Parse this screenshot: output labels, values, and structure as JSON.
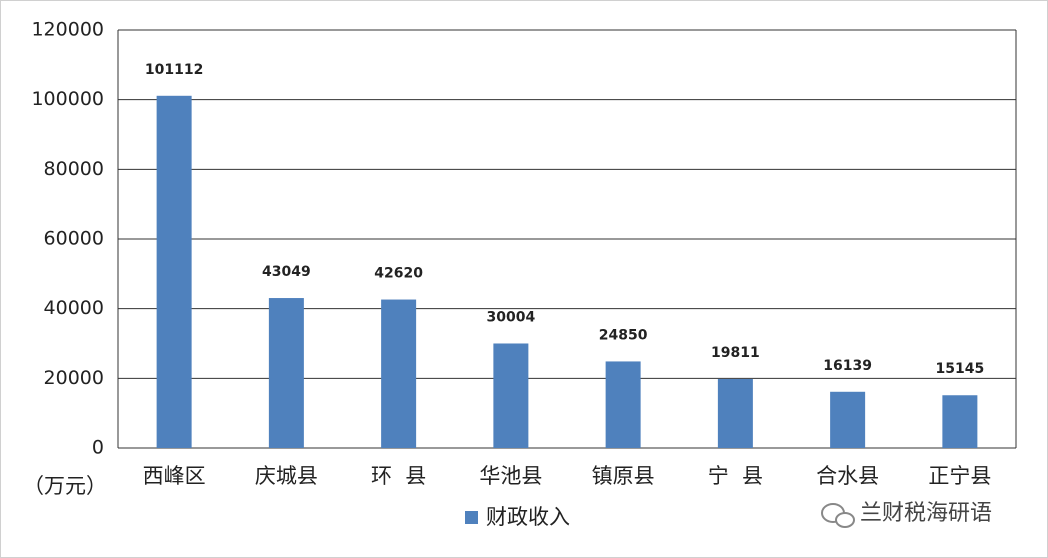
{
  "chart_data": {
    "type": "bar",
    "y_label": "（万元）",
    "categories": [
      "西峰区",
      "庆城县",
      "环  县",
      "华池县",
      "镇原县",
      "宁  县",
      "合水县",
      "正宁县"
    ],
    "series": [
      {
        "name": "财政收入",
        "color": "#4f81bd",
        "values": [
          101112,
          43049,
          42620,
          30004,
          24850,
          19811,
          16139,
          15145
        ]
      }
    ],
    "ylim": [
      0,
      120000
    ],
    "yticks": [
      0,
      20000,
      40000,
      60000,
      80000,
      100000,
      120000
    ],
    "grid": true,
    "legend": "bottom",
    "watermark": "兰财税海研语"
  }
}
